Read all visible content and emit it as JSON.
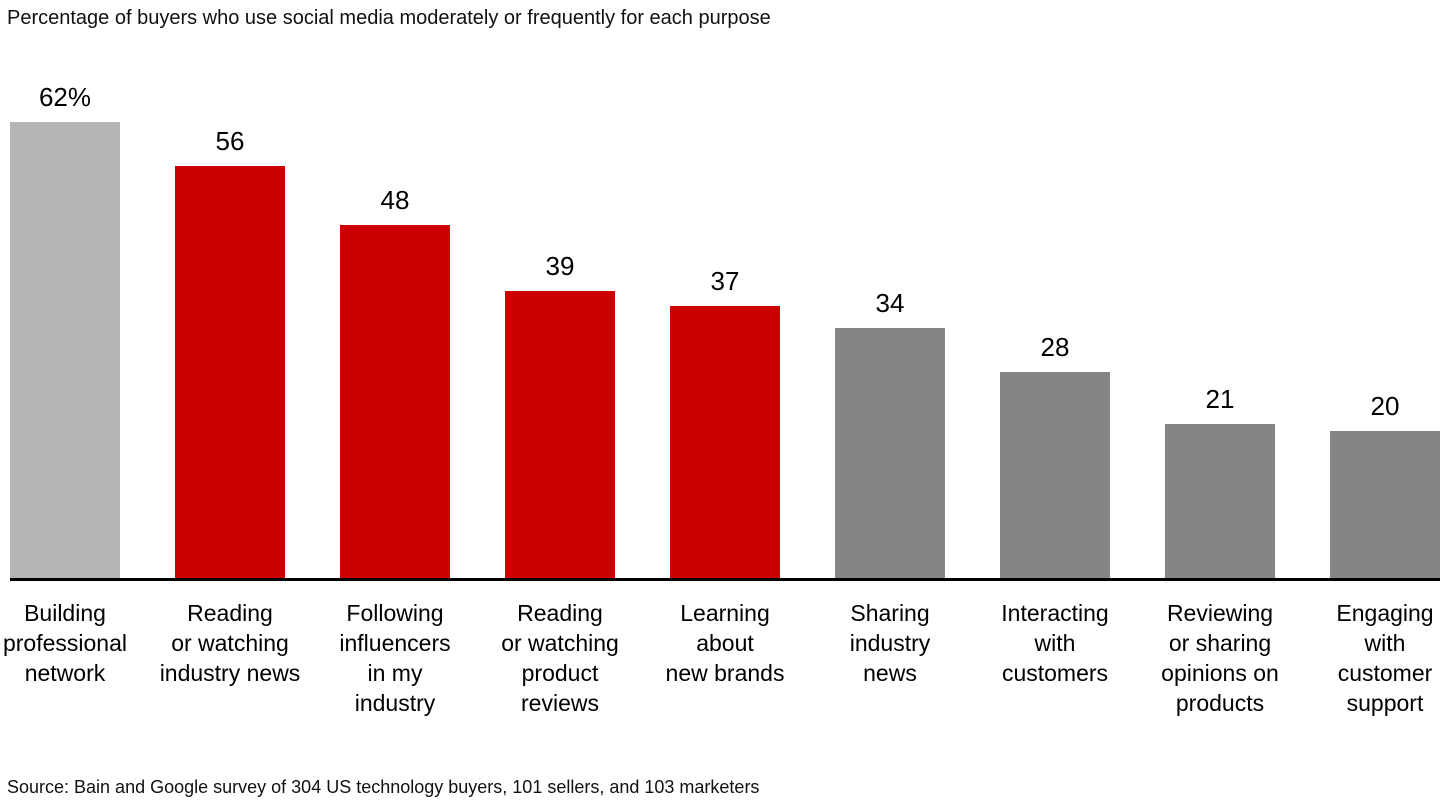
{
  "title": "Percentage of buyers who use social media moderately or frequently for each purpose",
  "source": "Source: Bain and Google survey of 304 US technology buyers, 101 sellers, and 103 marketers",
  "colors": {
    "highlight_red": "#cc0000",
    "leader_light_gray": "#b5b5b5",
    "dark_gray": "#858585",
    "axis_black": "#000000"
  },
  "chart_data": {
    "type": "bar",
    "title": "Percentage of buyers who use social media moderately or frequently for each purpose",
    "xlabel": "",
    "ylabel": "",
    "ylim": [
      0,
      62
    ],
    "grid": false,
    "legend": false,
    "categories": [
      "Building\nprofessional\nnetwork",
      "Reading\nor watching\nindustry news",
      "Following\ninfluencers\nin my\nindustry",
      "Reading\nor watching\nproduct\nreviews",
      "Learning\nabout\nnew brands",
      "Sharing\nindustry\nnews",
      "Interacting\nwith\ncustomers",
      "Reviewing\nor sharing\nopinions on\nproducts",
      "Engaging\nwith\ncustomer\nsupport"
    ],
    "values": [
      62,
      56,
      48,
      39,
      37,
      34,
      28,
      21,
      20
    ],
    "value_labels": [
      "62%",
      "56",
      "48",
      "39",
      "37",
      "34",
      "28",
      "21",
      "20"
    ],
    "bar_colors": [
      "#b5b5b5",
      "#cc0000",
      "#cc0000",
      "#cc0000",
      "#cc0000",
      "#858585",
      "#858585",
      "#858585",
      "#858585"
    ]
  }
}
